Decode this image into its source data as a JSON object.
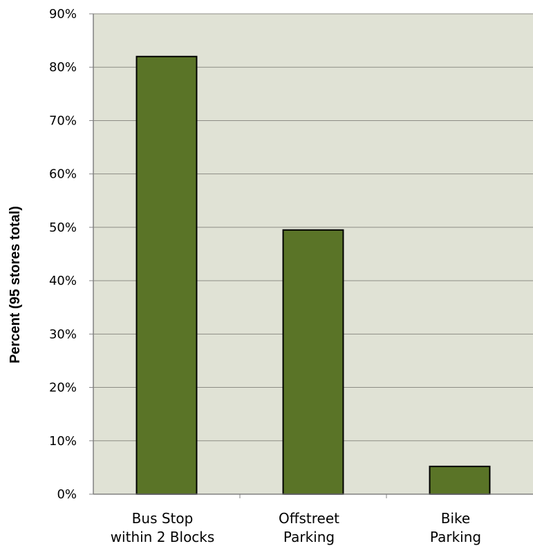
{
  "chart_data": {
    "type": "bar",
    "categories": [
      [
        "Bus Stop",
        "within 2 Blocks"
      ],
      [
        "Offstreet",
        "Parking"
      ],
      [
        "Bike",
        "Parking"
      ]
    ],
    "values": [
      82,
      49.5,
      5.2
    ],
    "ylabel": "Percent (95 stores total)",
    "ylim": [
      0,
      90
    ],
    "yticks": [
      0,
      10,
      20,
      30,
      40,
      50,
      60,
      70,
      80,
      90
    ],
    "ytick_suffix": "%",
    "grid": true,
    "legend": "none"
  },
  "colors": {
    "plot_background": "#e0e2d5",
    "bar_fill": "#5a7427",
    "bar_stroke": "#000000",
    "gridline": "#8c8c84",
    "axis": "#808080"
  }
}
